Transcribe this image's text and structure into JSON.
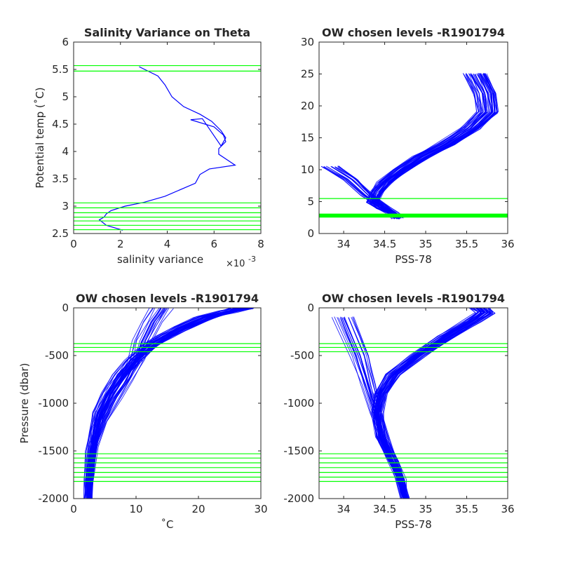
{
  "colors": {
    "profile": "#0000ff",
    "level": "#00ff00",
    "axis": "#262626",
    "background": "#ffffff"
  },
  "chart_data": [
    {
      "type": "line",
      "title": "Salinity Variance on Theta",
      "xlabel": "salinity variance",
      "xlabel_exponent": "×10",
      "xlabel_exponent_power": "-3",
      "ylabel": "Potential temp (˚C)",
      "xlim": [
        0,
        8
      ],
      "ylim": [
        2.5,
        6
      ],
      "xticks": [
        0,
        2,
        4,
        6,
        8
      ],
      "yticks": [
        2.5,
        3,
        3.5,
        4,
        4.5,
        5,
        5.5,
        6
      ],
      "xtick_labels": [
        "0",
        "2",
        "4",
        "6",
        "8"
      ],
      "ytick_labels": [
        "2.5",
        "3",
        "3.5",
        "4",
        "4.5",
        "5",
        "5.5",
        "6"
      ],
      "series": [
        {
          "x": [
            2.8,
            3.6,
            3.9,
            4.2,
            4.7,
            5.4,
            5.9,
            6.3,
            6.5,
            6.3,
            5.5,
            5.0,
            6.0,
            6.4,
            6.5,
            6.2,
            6.2,
            6.9,
            5.8,
            5.4,
            5.2,
            3.9,
            3.0,
            2.2,
            1.6,
            1.4,
            1.3,
            1.1,
            1.4,
            2.1
          ],
          "y": [
            5.55,
            5.38,
            5.22,
            5.0,
            4.82,
            4.68,
            4.55,
            4.38,
            4.25,
            4.1,
            4.6,
            4.58,
            4.45,
            4.3,
            4.18,
            4.05,
            3.95,
            3.75,
            3.68,
            3.58,
            3.42,
            3.18,
            3.07,
            3.0,
            2.92,
            2.86,
            2.8,
            2.75,
            2.65,
            2.56
          ]
        }
      ],
      "hlines": [
        5.57,
        5.47,
        3.06,
        2.97,
        2.88,
        2.8,
        2.73,
        2.65,
        2.57
      ]
    },
    {
      "type": "line",
      "title": "OW chosen levels -R1901794",
      "xlabel": "PSS-78",
      "ylabel": "",
      "xlim": [
        33.7,
        36
      ],
      "ylim": [
        0,
        30
      ],
      "xticks": [
        34,
        34.5,
        35,
        35.5,
        36
      ],
      "yticks": [
        0,
        5,
        10,
        15,
        20,
        25,
        30
      ],
      "xtick_labels": [
        "34",
        "34.5",
        "35",
        "35.5",
        "36"
      ],
      "ytick_labels": [
        "0",
        "5",
        "10",
        "15",
        "20",
        "25",
        "30"
      ],
      "series": [
        {
          "x": [
            34.65,
            34.6,
            34.45,
            34.35,
            34.4,
            34.5,
            34.7,
            34.95,
            35.25,
            35.55,
            35.75,
            35.72,
            35.6
          ],
          "y": [
            2.4,
            3.0,
            4.0,
            5.0,
            6.5,
            8.0,
            10.0,
            12.0,
            14.0,
            16.5,
            19.0,
            22.0,
            25.0
          ]
        },
        {
          "x": [
            34.7,
            34.62,
            34.3,
            34.1,
            33.85
          ],
          "y": [
            2.5,
            3.2,
            6.0,
            8.5,
            10.5
          ]
        }
      ],
      "hlines": [
        5.48,
        3.05,
        2.95,
        2.85,
        2.75,
        2.65,
        2.57
      ]
    },
    {
      "type": "line",
      "title": "OW chosen levels -R1901794",
      "xlabel": "˚C",
      "ylabel": "Pressure (dbar)",
      "xlim": [
        0,
        30
      ],
      "ylim": [
        -2000,
        0
      ],
      "xticks": [
        0,
        10,
        20,
        30
      ],
      "yticks": [
        -2000,
        -1500,
        -1000,
        -500,
        0
      ],
      "xtick_labels": [
        "0",
        "10",
        "20",
        "30"
      ],
      "ytick_labels": [
        "-2000",
        "-1500",
        "-1000",
        "-500",
        "0"
      ],
      "series": [
        {
          "x": [
            2.3,
            2.4,
            2.8,
            3.2,
            4.0,
            5.5,
            7.5,
            9.5,
            12.0,
            14.5,
            17.5,
            21.0,
            24.5,
            27.0
          ],
          "y": [
            -2000,
            -1800,
            -1500,
            -1300,
            -1100,
            -900,
            -700,
            -550,
            -400,
            -300,
            -200,
            -100,
            -40,
            0
          ]
        },
        {
          "x": [
            2.3,
            2.6,
            3.2,
            4.5,
            6.5,
            8.5,
            10.0,
            11.0,
            12.5,
            14.0
          ],
          "y": [
            -2000,
            -1700,
            -1450,
            -1200,
            -950,
            -750,
            -550,
            -350,
            -150,
            0
          ]
        }
      ],
      "hlines": [
        -375,
        -415,
        -460,
        -1530,
        -1575,
        -1625,
        -1675,
        -1725,
        -1775,
        -1820
      ]
    },
    {
      "type": "line",
      "title": "OW chosen levels -R1901794",
      "xlabel": "PSS-78",
      "ylabel": "",
      "xlim": [
        33.7,
        36
      ],
      "ylim": [
        -2000,
        0
      ],
      "xticks": [
        34,
        34.5,
        35,
        35.5,
        36
      ],
      "yticks": [
        -2000,
        -1500,
        -1000,
        -500,
        0
      ],
      "xtick_labels": [
        "34",
        "34.5",
        "35",
        "35.5",
        "36"
      ],
      "ytick_labels": [
        "-2000",
        "-1500",
        "-1000",
        "-500",
        "0"
      ],
      "series": [
        {
          "x": [
            34.75,
            34.7,
            34.6,
            34.45,
            34.4,
            34.45,
            34.6,
            34.9,
            35.25,
            35.55,
            35.72,
            35.65
          ],
          "y": [
            -2000,
            -1800,
            -1600,
            -1350,
            -1100,
            -900,
            -700,
            -500,
            -300,
            -150,
            -50,
            0
          ]
        },
        {
          "x": [
            34.75,
            34.65,
            34.5,
            34.4,
            34.3,
            34.2,
            34.0
          ],
          "y": [
            -2000,
            -1700,
            -1400,
            -1100,
            -800,
            -500,
            -100
          ]
        }
      ],
      "hlines": [
        -375,
        -415,
        -460,
        -1530,
        -1575,
        -1625,
        -1675,
        -1725,
        -1775,
        -1820
      ]
    }
  ]
}
